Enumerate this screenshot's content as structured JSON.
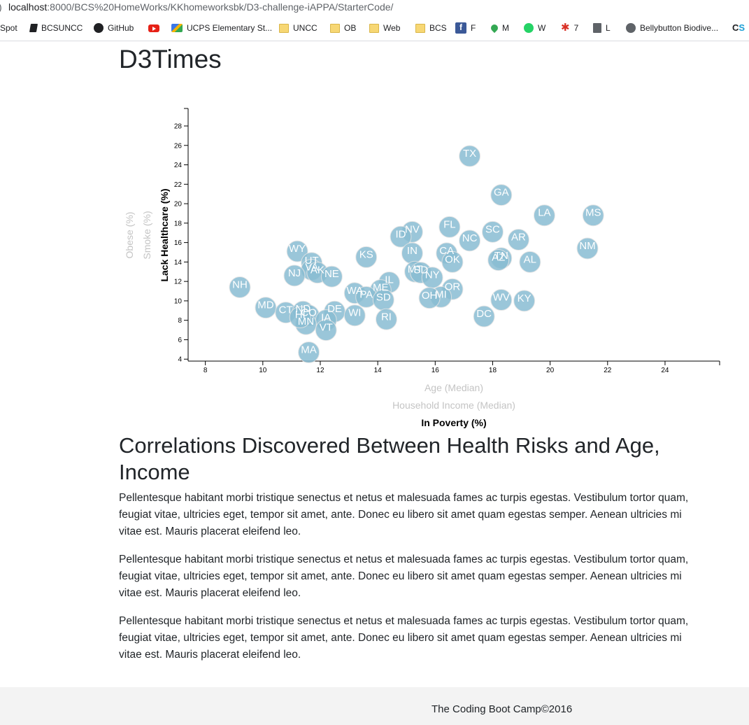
{
  "browser": {
    "url_host": "localhost",
    "url_path": ":8000/BCS%20HomeWorks/KKhomeworksbk/D3-challenge-iAPPA/StarterCode/",
    "bookmarks": [
      {
        "label": "Spot",
        "icon": "none"
      },
      {
        "label": "BCSUNCC",
        "icon": "book-icon"
      },
      {
        "label": "GitHub",
        "icon": "github-icon"
      },
      {
        "label": "",
        "icon": "youtube-icon"
      },
      {
        "label": "UCPS Elementary St...",
        "icon": "ucps-icon"
      },
      {
        "label": "UNCC",
        "icon": "folder-icon"
      },
      {
        "label": "OB",
        "icon": "folder-icon"
      },
      {
        "label": "Web",
        "icon": "folder-icon"
      },
      {
        "label": "BCS",
        "icon": "folder-icon"
      },
      {
        "label": "F",
        "icon": "facebook-icon"
      },
      {
        "label": "M",
        "icon": "maps-icon"
      },
      {
        "label": "W",
        "icon": "whatsapp-icon"
      },
      {
        "label": "7",
        "icon": "star-icon"
      },
      {
        "label": "L",
        "icon": "building-icon"
      },
      {
        "label": "Bellybutton Biodive...",
        "icon": "globe-icon"
      },
      {
        "label": "CS",
        "icon": "cs-icon"
      }
    ]
  },
  "page": {
    "title": "D3Times",
    "heading": "Correlations Discovered Between Health Risks and Age, Income",
    "paragraphs": [
      "Pellentesque habitant morbi tristique senectus et netus et malesuada fames ac turpis egestas. Vestibulum tortor quam, feugiat vitae, ultricies eget, tempor sit amet, ante. Donec eu libero sit amet quam egestas semper. Aenean ultricies mi vitae est. Mauris placerat eleifend leo.",
      "Pellentesque habitant morbi tristique senectus et netus et malesuada fames ac turpis egestas. Vestibulum tortor quam, feugiat vitae, ultricies eget, tempor sit amet, ante. Donec eu libero sit amet quam egestas semper. Aenean ultricies mi vitae est. Mauris placerat eleifend leo.",
      "Pellentesque habitant morbi tristique senectus et netus et malesuada fames ac turpis egestas. Vestibulum tortor quam, feugiat vitae, ultricies eget, tempor sit amet, ante. Donec eu libero sit amet quam egestas semper. Aenean ultricies mi vitae est. Mauris placerat eleifend leo."
    ],
    "footer": "The Coding Boot Camp©2016"
  },
  "colors": {
    "circle_fill": "#89bdd3",
    "circle_stroke": "#e3e3e3",
    "active_label": "#000000",
    "inactive_label": "#c4c4c4"
  },
  "chart_data": {
    "type": "scatter",
    "x_axis": {
      "labels": [
        {
          "text": "Age (Median)",
          "active": false
        },
        {
          "text": "Household Income (Median)",
          "active": false
        },
        {
          "text": "In Poverty (%)",
          "active": true
        }
      ],
      "ticks": [
        8,
        10,
        12,
        14,
        16,
        18,
        20,
        22,
        24
      ],
      "range": [
        7.4,
        25.9
      ]
    },
    "y_axis": {
      "labels": [
        {
          "text": "Lack Healthcare (%)",
          "active": true
        },
        {
          "text": "Smoke (%)",
          "active": false
        },
        {
          "text": "Obese (%)",
          "active": false
        }
      ],
      "ticks": [
        4,
        6,
        8,
        10,
        12,
        14,
        16,
        18,
        20,
        22,
        24,
        26,
        28
      ],
      "range": [
        3.8,
        29.8
      ]
    },
    "points": [
      {
        "abbr": "TX",
        "x": 17.2,
        "y": 24.9
      },
      {
        "abbr": "GA",
        "x": 18.3,
        "y": 20.9
      },
      {
        "abbr": "LA",
        "x": 19.8,
        "y": 18.8
      },
      {
        "abbr": "MS",
        "x": 21.5,
        "y": 18.8
      },
      {
        "abbr": "FL",
        "x": 16.5,
        "y": 17.6
      },
      {
        "abbr": "NV",
        "x": 15.2,
        "y": 17.1
      },
      {
        "abbr": "SC",
        "x": 18.0,
        "y": 17.1
      },
      {
        "abbr": "ID",
        "x": 14.8,
        "y": 16.6
      },
      {
        "abbr": "NC",
        "x": 17.2,
        "y": 16.2
      },
      {
        "abbr": "AR",
        "x": 18.9,
        "y": 16.3
      },
      {
        "abbr": "NM",
        "x": 21.3,
        "y": 15.4
      },
      {
        "abbr": "WY",
        "x": 11.2,
        "y": 15.1
      },
      {
        "abbr": "IN",
        "x": 15.2,
        "y": 14.9
      },
      {
        "abbr": "CA",
        "x": 16.4,
        "y": 14.9
      },
      {
        "abbr": "KS",
        "x": 13.6,
        "y": 14.5
      },
      {
        "abbr": "TN",
        "x": 18.3,
        "y": 14.4
      },
      {
        "abbr": "OK",
        "x": 16.6,
        "y": 14.0
      },
      {
        "abbr": "AL",
        "x": 19.3,
        "y": 14.0
      },
      {
        "abbr": "UT",
        "x": 11.7,
        "y": 13.9
      },
      {
        "abbr": "AZ",
        "x": 18.2,
        "y": 14.2
      },
      {
        "abbr": "VA",
        "x": 11.7,
        "y": 13.2
      },
      {
        "abbr": "AK",
        "x": 11.9,
        "y": 12.9
      },
      {
        "abbr": "MT",
        "x": 15.3,
        "y": 13.0
      },
      {
        "abbr": "SD",
        "x": 15.5,
        "y": 12.9
      },
      {
        "abbr": "NJ",
        "x": 11.1,
        "y": 12.6
      },
      {
        "abbr": "NE",
        "x": 12.4,
        "y": 12.5
      },
      {
        "abbr": "NY",
        "x": 15.9,
        "y": 12.4
      },
      {
        "abbr": "IL",
        "x": 14.4,
        "y": 11.9
      },
      {
        "abbr": "NH",
        "x": 9.2,
        "y": 11.4
      },
      {
        "abbr": "ME",
        "x": 14.1,
        "y": 11.1
      },
      {
        "abbr": "OR",
        "x": 16.6,
        "y": 11.2
      },
      {
        "abbr": "WA",
        "x": 13.2,
        "y": 10.8
      },
      {
        "abbr": "PA",
        "x": 13.6,
        "y": 10.4
      },
      {
        "abbr": "MI",
        "x": 16.2,
        "y": 10.4
      },
      {
        "abbr": "OH",
        "x": 15.8,
        "y": 10.3
      },
      {
        "abbr": "SD",
        "x": 14.2,
        "y": 10.1
      },
      {
        "abbr": "WV",
        "x": 18.3,
        "y": 10.1
      },
      {
        "abbr": "KY",
        "x": 19.1,
        "y": 10.0
      },
      {
        "abbr": "MD",
        "x": 10.1,
        "y": 9.3
      },
      {
        "abbr": "CT",
        "x": 10.8,
        "y": 8.8
      },
      {
        "abbr": "ND",
        "x": 11.4,
        "y": 8.9
      },
      {
        "abbr": "DE",
        "x": 12.5,
        "y": 8.9
      },
      {
        "abbr": "WI",
        "x": 13.2,
        "y": 8.5
      },
      {
        "abbr": "CO",
        "x": 11.6,
        "y": 8.5
      },
      {
        "abbr": "DC",
        "x": 17.7,
        "y": 8.4
      },
      {
        "abbr": "RI",
        "x": 14.3,
        "y": 8.1
      },
      {
        "abbr": "IA",
        "x": 12.2,
        "y": 8.0
      },
      {
        "abbr": "MN",
        "x": 11.5,
        "y": 7.6
      },
      {
        "abbr": "VT",
        "x": 12.2,
        "y": 7.0
      },
      {
        "abbr": "HI",
        "x": 11.3,
        "y": 8.3
      },
      {
        "abbr": "MA",
        "x": 11.6,
        "y": 4.7
      }
    ]
  }
}
